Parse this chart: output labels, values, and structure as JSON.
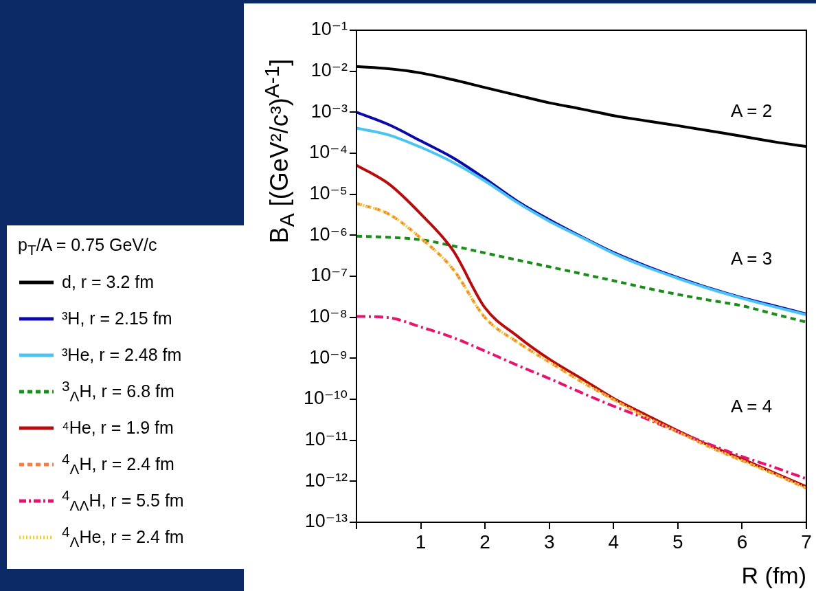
{
  "chart_data": {
    "type": "line",
    "xlabel": "R (fm)",
    "ylabel": "B$_{A}$ [(GeV²/c³)$^{A-1}$]",
    "legend_title": "p$_{T}$/A = 0.75 GeV/c",
    "legend": "left",
    "log": "y",
    "xlim": [
      0,
      7
    ],
    "xticks": [
      {
        "value": 0,
        "label": null
      },
      1,
      2,
      3,
      4,
      5,
      6,
      7
    ],
    "ylim": [
      1e-13,
      0.1
    ],
    "yticks": [
      {
        "value": 0.1,
        "label": "10⁻¹"
      },
      {
        "value": 0.01,
        "label": "10⁻²"
      },
      {
        "value": 0.001,
        "label": "10⁻³"
      },
      {
        "value": 0.0001,
        "label": "10⁻⁴"
      },
      {
        "value": 1e-05,
        "label": "10⁻⁵"
      },
      {
        "value": 1e-06,
        "label": "10⁻⁶"
      },
      {
        "value": 1e-07,
        "label": "10⁻⁷"
      },
      {
        "value": 1e-08,
        "label": "10⁻⁸"
      },
      {
        "value": 1e-09,
        "label": "10⁻⁹"
      },
      {
        "value": 1e-10,
        "label": "10⁻¹⁰"
      },
      {
        "value": 1e-11,
        "label": "10⁻¹¹"
      },
      {
        "value": 1e-12,
        "label": "10⁻¹²"
      },
      {
        "value": 1e-13,
        "label": "10⁻¹³"
      }
    ],
    "marker": "none",
    "x": [
      0,
      0.5,
      1,
      1.5,
      2,
      2.5,
      3,
      3.5,
      4,
      4.5,
      5,
      5.5,
      6,
      6.5,
      7
    ],
    "series": [
      {
        "name": "d, r = 3.2 fm",
        "color": "#000000",
        "line_style": "solid",
        "values": [
          0.013,
          0.0115,
          0.0091,
          0.0062,
          0.004,
          0.0026,
          0.0017,
          0.0012,
          0.00083,
          0.00062,
          0.00047,
          0.00035,
          0.00026,
          0.00019,
          0.000145
        ]
      },
      {
        "name": "³H, r = 2.15 fm",
        "color": "#0a0aa8",
        "line_style": "solid",
        "values": [
          0.001,
          0.0005,
          0.0002,
          7.8e-05,
          2.4e-05,
          6.8e-06,
          2.4e-06,
          9.3e-07,
          3.8e-07,
          1.8e-07,
          9.3e-08,
          5.1e-08,
          3e-08,
          1.9e-08,
          1.2e-08
        ]
      },
      {
        "name": "³He, r = 2.48 fm",
        "color": "#4cc4f2",
        "line_style": "solid",
        "values": [
          0.00041,
          0.00028,
          0.00014,
          6e-05,
          2.1e-05,
          6.3e-06,
          2.2e-06,
          8.9e-07,
          3.6e-07,
          1.7e-07,
          8.9e-08,
          4.9e-08,
          2.9e-08,
          1.8e-08,
          1.15e-08
        ]
      },
      {
        "name": "$^{3}$$_{Λ}$H,   r = 6.8 fm",
        "color": "#1a8c1a",
        "line_style": "dashed",
        "values": [
          9.5e-07,
          8.9e-07,
          7.8e-07,
          5.5e-07,
          3.7e-07,
          2.5e-07,
          1.7e-07,
          1.15e-07,
          7.8e-08,
          5.2e-08,
          3.6e-08,
          2.6e-08,
          1.9e-08,
          1.2e-08,
          7.6e-09
        ]
      },
      {
        "name": "⁴He, r = 1.9 fm",
        "color": "#b80c0c",
        "line_style": "solid",
        "values": [
          5.1e-05,
          1.8e-05,
          3.3e-06,
          4.3e-07,
          1.7e-08,
          3.5e-09,
          9.5e-10,
          3.2e-10,
          1.05e-10,
          4.2e-11,
          1.7e-11,
          7.4e-12,
          3.5e-12,
          1.6e-12,
          7.4e-13
        ]
      },
      {
        "name": "$^{4}$$_{Λ}$H, r = 2.4 fm",
        "color": "#f0804a",
        "line_style": "dashed",
        "values": [
          6e-06,
          3.3e-06,
          8.5e-07,
          1.5e-07,
          9.8e-09,
          2.5e-09,
          8.1e-10,
          2.7e-10,
          9.8e-11,
          3.7e-11,
          1.6e-11,
          6.8e-12,
          3.2e-12,
          1.5e-12,
          6.8e-13
        ]
      },
      {
        "name": "$^{4}$$_{ΛΛ}$H, r = 5.5 fm",
        "color": "#e8136e",
        "line_style": "dashdot",
        "values": [
          1.05e-08,
          9.8e-09,
          5.8e-09,
          3.2e-09,
          1.5e-09,
          6.8e-10,
          3.2e-10,
          1.45e-10,
          6.8e-11,
          3.4e-11,
          1.6e-11,
          7.9e-12,
          4e-12,
          2.2e-12,
          1.15e-12
        ]
      },
      {
        "name": "$^{4}$$_{Λ}$He, r = 2.4 fm",
        "color": "#f5d020",
        "line_style": "dotted",
        "values": [
          6e-06,
          3.3e-06,
          8.5e-07,
          1.5e-07,
          9.8e-09,
          2.5e-09,
          8.1e-10,
          2.7e-10,
          9.8e-11,
          3.7e-11,
          1.6e-11,
          6.8e-12,
          3.2e-12,
          1.5e-12,
          6.8e-13
        ]
      }
    ],
    "annotations": [
      "A = 2",
      "A = 3",
      "A = 4"
    ]
  }
}
